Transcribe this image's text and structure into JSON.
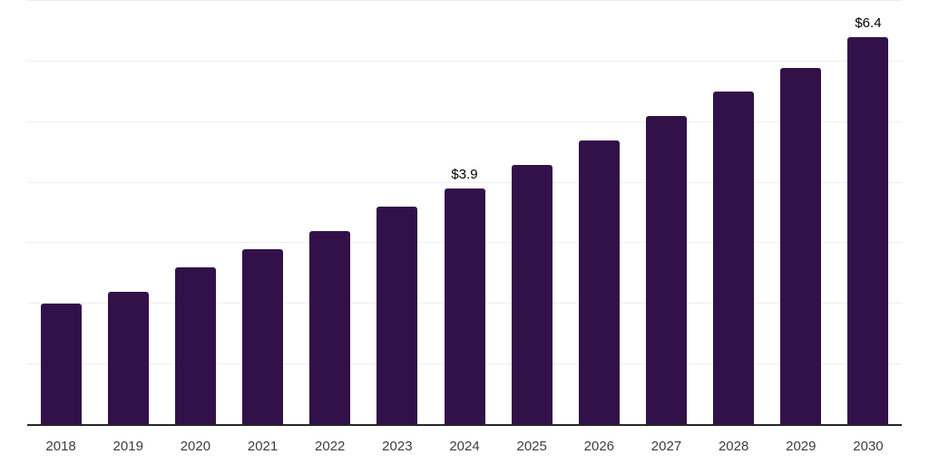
{
  "chart_data": {
    "type": "bar",
    "title": "",
    "xlabel": "",
    "ylabel": "",
    "categories": [
      "2018",
      "2019",
      "2020",
      "2021",
      "2022",
      "2023",
      "2024",
      "2025",
      "2026",
      "2027",
      "2028",
      "2029",
      "2030"
    ],
    "values": [
      2.0,
      2.2,
      2.6,
      2.9,
      3.2,
      3.6,
      3.9,
      4.3,
      4.7,
      5.1,
      5.5,
      5.9,
      6.4
    ],
    "point_labels": {
      "2024": "$3.9",
      "2030": "$6.4"
    },
    "ylim": [
      0,
      7
    ],
    "gridline_step": 1,
    "grid": "horizontal",
    "legend": "none",
    "colors": {
      "bar": "#321148",
      "grid": "#efefef",
      "axis": "#262626",
      "tick": "#3d3d3d",
      "data_label": "#000000",
      "background": "#ffffff"
    }
  }
}
